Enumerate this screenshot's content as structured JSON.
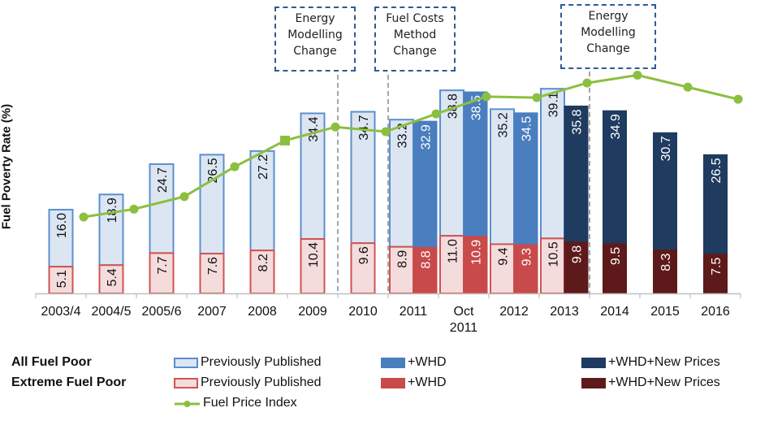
{
  "chart_data": {
    "type": "bar",
    "title": "",
    "xlabel": "",
    "ylabel": "Fuel Poverty Rate (%)",
    "ylim": [
      0,
      40
    ],
    "grid": false,
    "categories": [
      "2003/4",
      "2004/5",
      "2005/6",
      "2007",
      "2008",
      "2009",
      "2010",
      "2011",
      "Oct 2011",
      "2012",
      "2013",
      "2014",
      "2015",
      "2016"
    ],
    "series": [
      {
        "name": "All Fuel Poor - Previously Published",
        "group": "all",
        "kind": "prev",
        "color": "#dce6f2",
        "stroke": "#5b8fd0",
        "label_color": "#111111",
        "values": [
          16.0,
          18.9,
          24.7,
          26.5,
          27.2,
          34.4,
          34.7,
          33.2,
          38.8,
          35.2,
          39.1,
          null,
          null,
          null
        ]
      },
      {
        "name": "All Fuel Poor - +WHD",
        "group": "all",
        "kind": "whd",
        "color": "#4a7ebf",
        "stroke": "#4a7ebf",
        "label_color": "#ffffff",
        "values": [
          null,
          null,
          null,
          null,
          null,
          null,
          null,
          32.9,
          38.5,
          34.5,
          null,
          null,
          null,
          null
        ]
      },
      {
        "name": "All Fuel Poor - +WHD+New Prices",
        "group": "all",
        "kind": "new",
        "color": "#1f3b60",
        "stroke": "#1f3b60",
        "label_color": "#ffffff",
        "values": [
          null,
          null,
          null,
          null,
          null,
          null,
          null,
          null,
          null,
          null,
          35.8,
          34.9,
          30.7,
          26.5
        ]
      },
      {
        "name": "Extreme Fuel Poor - Previously Published",
        "group": "extreme",
        "kind": "prev",
        "color": "#f5dcdc",
        "stroke": "#d05454",
        "label_color": "#111111",
        "values": [
          5.1,
          5.4,
          7.7,
          7.6,
          8.2,
          10.4,
          9.6,
          8.9,
          11.0,
          9.4,
          10.5,
          null,
          null,
          null
        ]
      },
      {
        "name": "Extreme Fuel Poor - +WHD",
        "group": "extreme",
        "kind": "whd",
        "color": "#c94a4a",
        "stroke": "#c94a4a",
        "label_color": "#ffffff",
        "values": [
          null,
          null,
          null,
          null,
          null,
          null,
          null,
          8.8,
          10.9,
          9.3,
          null,
          null,
          null,
          null
        ]
      },
      {
        "name": "Extreme Fuel Poor - +WHD+New Prices",
        "group": "extreme",
        "kind": "new",
        "color": "#5e1a1a",
        "stroke": "#5e1a1a",
        "label_color": "#ffffff",
        "values": [
          null,
          null,
          null,
          null,
          null,
          null,
          null,
          null,
          null,
          null,
          9.8,
          9.5,
          8.3,
          7.5
        ]
      }
    ],
    "line_series": {
      "name": "Fuel Price Index",
      "color": "#8cbf3f",
      "axis": "secondary (unlabeled)",
      "values": [
        14.6,
        16.1,
        18.5,
        24.2,
        29.2,
        31.8,
        30.9,
        34.3,
        37.6,
        37.4,
        40.2,
        41.7,
        39.4,
        37.1
      ],
      "square_marker_index": 4
    },
    "annotations": [
      {
        "text": [
          "Energy",
          "Modelling",
          "Change"
        ],
        "after_category": "2009",
        "style": "dashed box with dashed divider"
      },
      {
        "text": [
          "Fuel Costs",
          "Method",
          "Change"
        ],
        "after_category": "2010",
        "style": "dashed box with dashed divider"
      },
      {
        "text": [
          "Energy",
          "Modelling",
          "Change"
        ],
        "after_category": "2013",
        "style": "dashed box with dashed divider"
      }
    ],
    "legend": {
      "placement": "bottom",
      "groups": [
        {
          "label": "All Fuel Poor",
          "items": [
            "Previously Published",
            "+WHD",
            "+WHD+New Prices"
          ]
        },
        {
          "label": "Extreme Fuel Poor",
          "items": [
            "Previously Published",
            "+WHD",
            "+WHD+New Prices"
          ]
        }
      ],
      "line_item": "Fuel Price Index"
    }
  },
  "labels": {
    "ylabel": "Fuel Poverty Rate (%)",
    "ann1": [
      "Energy",
      "Modelling",
      "Change"
    ],
    "ann2": [
      "Fuel Costs",
      "Method",
      "Change"
    ],
    "ann3": [
      "Energy",
      "Modelling",
      "Change"
    ],
    "legend_all": "All Fuel Poor",
    "legend_extreme": "Extreme Fuel Poor",
    "legend_prev": "Previously Published",
    "legend_whd": "+WHD",
    "legend_new": "+WHD+New Prices",
    "legend_fpi": "Fuel Price Index"
  }
}
